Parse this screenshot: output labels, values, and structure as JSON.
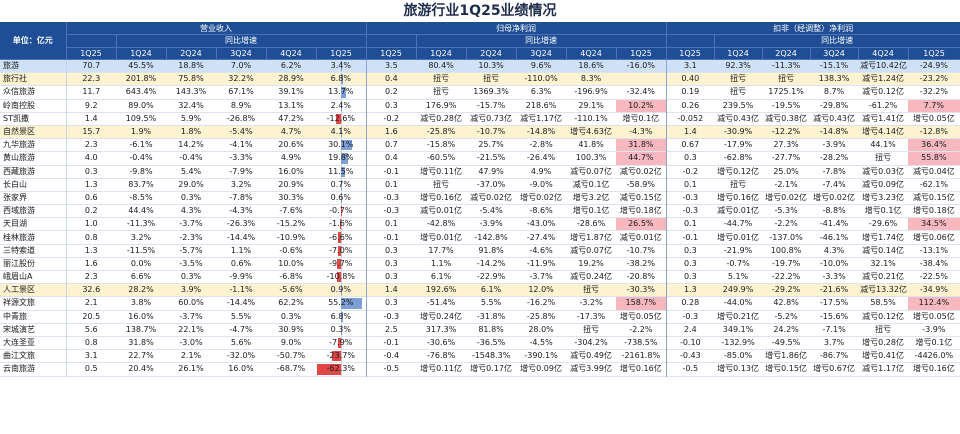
{
  "title": "旅游行业1Q25业绩情况",
  "header": {
    "unit_label": "单位：亿元",
    "groups": [
      "营业收入",
      "归母净利润",
      "扣非（经调整）净利润"
    ],
    "subgroup": "同比增速",
    "cols_revenue": [
      "1Q25",
      "1Q24",
      "2Q24",
      "3Q24",
      "4Q24",
      "1Q25"
    ],
    "cols_profit": [
      "1Q25",
      "1Q24",
      "2Q24",
      "3Q24",
      "4Q24",
      "1Q25"
    ],
    "cols_adj": [
      "1Q25",
      "1Q24",
      "2Q24",
      "3Q24",
      "4Q24",
      "1Q25"
    ]
  },
  "rows": [
    {
      "type": "total",
      "name": "旅游",
      "rev": [
        "70.7",
        "45.5%",
        "18.8%",
        "7.0%",
        "6.2%",
        "3.4%"
      ],
      "np": [
        "3.5",
        "80.4%",
        "10.3%",
        "9.6%",
        "18.6%",
        "-16.0%"
      ],
      "adj": [
        "3.1",
        "92.3%",
        "-11.3%",
        "-15.1%",
        "减亏10.42亿",
        "-24.9%"
      ],
      "bar": 3.4
    },
    {
      "type": "sector",
      "name": "旅行社",
      "rev": [
        "22.3",
        "201.8%",
        "75.8%",
        "32.2%",
        "28.9%",
        "6.8%"
      ],
      "np": [
        "0.4",
        "扭亏",
        "扭亏",
        "-110.0%",
        "8.3%",
        ""
      ],
      "adj": [
        "0.40",
        "扭亏",
        "扭亏",
        "138.3%",
        "减亏1.24亿",
        "-23.2%"
      ],
      "bar": 6.8
    },
    {
      "type": "row",
      "name": "众信旅游",
      "rev": [
        "11.7",
        "643.4%",
        "143.3%",
        "67.1%",
        "39.1%",
        "13.7%"
      ],
      "np": [
        "0.2",
        "扭亏",
        "1369.3%",
        "6.3%",
        "-196.9%",
        "-32.4%"
      ],
      "adj": [
        "0.19",
        "扭亏",
        "1725.1%",
        "8.7%",
        "减亏0.12亿",
        "-32.2%"
      ],
      "bar": 13.7
    },
    {
      "type": "row",
      "name": "岭南控股",
      "rev": [
        "9.2",
        "89.0%",
        "32.4%",
        "8.9%",
        "13.1%",
        "2.4%"
      ],
      "np": [
        "0.3",
        "176.9%",
        "-15.7%",
        "218.6%",
        "29.1%",
        "10.2%"
      ],
      "adj": [
        "0.26",
        "239.5%",
        "-19.5%",
        "-29.8%",
        "-61.2%",
        "7.7%"
      ],
      "bar": 2.4,
      "pink_np": true,
      "pink_adj": true
    },
    {
      "type": "row",
      "name": "ST凯撒",
      "rev": [
        "1.4",
        "109.5%",
        "5.9%",
        "-26.8%",
        "47.2%",
        "-12.6%"
      ],
      "np": [
        "-0.2",
        "减亏0.28亿",
        "减亏0.73亿",
        "减亏1.17亿",
        "-110.1%",
        "增亏0.1亿"
      ],
      "adj": [
        "-0.052",
        "减亏0.43亿",
        "减亏0.38亿",
        "减亏0.43亿",
        "减亏1.41亿",
        "增亏0.05亿"
      ],
      "bar": -12.6
    },
    {
      "type": "sector",
      "name": "自然景区",
      "rev": [
        "15.7",
        "1.9%",
        "1.8%",
        "-5.4%",
        "4.7%",
        "4.1%"
      ],
      "np": [
        "1.6",
        "-25.8%",
        "-10.7%",
        "-14.8%",
        "增亏4.63亿",
        "-4.3%"
      ],
      "adj": [
        "1.4",
        "-30.9%",
        "-12.2%",
        "-14.8%",
        "增亏4.14亿",
        "-12.8%"
      ],
      "bar": 4.1
    },
    {
      "type": "row",
      "name": "九华旅游",
      "rev": [
        "2.3",
        "-6.1%",
        "14.2%",
        "-4.1%",
        "20.6%",
        "30.1%"
      ],
      "np": [
        "0.7",
        "-15.8%",
        "25.7%",
        "-2.8%",
        "41.8%",
        "31.8%"
      ],
      "adj": [
        "0.67",
        "-17.9%",
        "27.3%",
        "-3.9%",
        "44.1%",
        "36.4%"
      ],
      "bar": 30.1,
      "pink_np": true,
      "pink_adj": true
    },
    {
      "type": "row",
      "name": "黄山旅游",
      "rev": [
        "4.0",
        "-0.4%",
        "-0.4%",
        "-3.3%",
        "4.9%",
        "19.8%"
      ],
      "np": [
        "0.4",
        "-60.5%",
        "-21.5%",
        "-26.4%",
        "100.3%",
        "44.7%"
      ],
      "adj": [
        "0.3",
        "-62.8%",
        "-27.7%",
        "-28.2%",
        "扭亏",
        "55.8%"
      ],
      "bar": 19.8,
      "pink_np": true,
      "pink_adj": true
    },
    {
      "type": "row",
      "name": "西藏旅游",
      "rev": [
        "0.3",
        "-9.8%",
        "5.4%",
        "-7.9%",
        "16.0%",
        "11.5%"
      ],
      "np": [
        "-0.1",
        "增亏0.11亿",
        "47.9%",
        "4.9%",
        "减亏0.07亿",
        "减亏0.02亿"
      ],
      "adj": [
        "-0.2",
        "增亏0.12亿",
        "25.0%",
        "-7.8%",
        "减亏0.03亿",
        "减亏0.04亿"
      ],
      "bar": 11.5
    },
    {
      "type": "row",
      "name": "长白山",
      "rev": [
        "1.3",
        "83.7%",
        "29.0%",
        "3.2%",
        "20.9%",
        "0.7%"
      ],
      "np": [
        "0.1",
        "扭亏",
        "-37.0%",
        "-9.0%",
        "减亏0.1亿",
        "-58.9%"
      ],
      "adj": [
        "0.1",
        "扭亏",
        "-2.1%",
        "-7.4%",
        "减亏0.09亿",
        "-62.1%"
      ],
      "bar": 0.7
    },
    {
      "type": "row",
      "name": "张家界",
      "rev": [
        "0.6",
        "-8.5%",
        "0.3%",
        "-7.8%",
        "30.3%",
        "0.6%"
      ],
      "np": [
        "-0.3",
        "增亏0.16亿",
        "减亏0.02亿",
        "增亏0.02亿",
        "增亏3.2亿",
        "减亏0.15亿"
      ],
      "adj": [
        "-0.3",
        "增亏0.16亿",
        "增亏0.02亿",
        "增亏0.02亿",
        "增亏3.23亿",
        "减亏0.15亿"
      ],
      "bar": 0.6
    },
    {
      "type": "row",
      "name": "西域旅游",
      "rev": [
        "0.2",
        "44.4%",
        "4.3%",
        "-4.3%",
        "-7.6%",
        "-0.7%"
      ],
      "np": [
        "-0.3",
        "减亏0.01亿",
        "-5.4%",
        "-8.6%",
        "增亏0.1亿",
        "增亏0.18亿"
      ],
      "adj": [
        "-0.3",
        "减亏0.01亿",
        "-5.3%",
        "-8.8%",
        "增亏0.1亿",
        "增亏0.18亿"
      ],
      "bar": -0.7
    },
    {
      "type": "row",
      "name": "天目湖",
      "rev": [
        "1.0",
        "-11.3%",
        "-3.7%",
        "-26.3%",
        "-15.2%",
        "-1.6%"
      ],
      "np": [
        "0.1",
        "-42.8%",
        "-3.9%",
        "-43.0%",
        "-28.6%",
        "26.5%"
      ],
      "adj": [
        "0.1",
        "-44.7%",
        "-2.2%",
        "-41.4%",
        "-29.6%",
        "34.5%"
      ],
      "bar": -1.6,
      "pink_np": true,
      "pink_adj": true
    },
    {
      "type": "row",
      "name": "桂林旅游",
      "rev": [
        "0.8",
        "3.2%",
        "-2.3%",
        "-14.4%",
        "-10.9%",
        "-6.6%"
      ],
      "np": [
        "-0.1",
        "增亏0.01亿",
        "-142.8%",
        "-27.4%",
        "增亏1.87亿",
        "减亏0.01亿"
      ],
      "adj": [
        "-0.1",
        "增亏0.01亿",
        "-137.0%",
        "-46.1%",
        "增亏1.74亿",
        "增亏0.06亿"
      ],
      "bar": -6.6
    },
    {
      "type": "row",
      "name": "三特索道",
      "rev": [
        "1.3",
        "-11.5%",
        "-5.7%",
        "1.1%",
        "-0.6%",
        "-7.0%"
      ],
      "np": [
        "0.3",
        "17.7%",
        "91.8%",
        "-4.6%",
        "减亏0.07亿",
        "-10.7%"
      ],
      "adj": [
        "0.3",
        "-21.9%",
        "100.8%",
        "4.3%",
        "减亏0.14亿",
        "-13.1%"
      ],
      "bar": -7.0
    },
    {
      "type": "row",
      "name": "丽江股份",
      "rev": [
        "1.6",
        "0.0%",
        "-3.5%",
        "0.6%",
        "10.0%",
        "-9.7%"
      ],
      "np": [
        "0.3",
        "1.1%",
        "-14.2%",
        "-11.9%",
        "19.2%",
        "-38.2%"
      ],
      "adj": [
        "0.3",
        "-0.7%",
        "-19.7%",
        "-10.0%",
        "32.1%",
        "-38.4%"
      ],
      "bar": -9.7
    },
    {
      "type": "row",
      "name": "峨眉山A",
      "rev": [
        "2.3",
        "6.6%",
        "0.3%",
        "-9.9%",
        "-6.8%",
        "-10.8%"
      ],
      "np": [
        "0.3",
        "6.1%",
        "-22.9%",
        "-3.7%",
        "减亏0.24亿",
        "-20.8%"
      ],
      "adj": [
        "0.3",
        "5.1%",
        "-22.2%",
        "-3.3%",
        "减亏0.21亿",
        "-22.5%"
      ],
      "bar": -10.8
    },
    {
      "type": "sector",
      "name": "人工景区",
      "rev": [
        "32.6",
        "28.2%",
        "3.9%",
        "-1.1%",
        "-5.6%",
        "0.9%"
      ],
      "np": [
        "1.4",
        "192.6%",
        "6.1%",
        "12.0%",
        "扭亏",
        "-30.3%"
      ],
      "adj": [
        "1.3",
        "249.9%",
        "-29.2%",
        "-21.6%",
        "减亏13.32亿",
        "-34.9%"
      ],
      "bar": 0.9
    },
    {
      "type": "row",
      "name": "祥源文旅",
      "rev": [
        "2.1",
        "3.8%",
        "60.0%",
        "-14.4%",
        "62.2%",
        "55.2%"
      ],
      "np": [
        "0.3",
        "-51.4%",
        "5.5%",
        "-16.2%",
        "-3.2%",
        "158.7%"
      ],
      "adj": [
        "0.28",
        "-44.0%",
        "42.8%",
        "-17.5%",
        "58.5%",
        "112.4%"
      ],
      "bar": 55.2,
      "pink_np": true,
      "pink_adj": true
    },
    {
      "type": "row",
      "name": "中青旅",
      "rev": [
        "20.5",
        "16.0%",
        "-3.7%",
        "5.5%",
        "0.3%",
        "6.8%"
      ],
      "np": [
        "-0.3",
        "增亏0.24亿",
        "-31.8%",
        "-25.8%",
        "-17.3%",
        "增亏0.05亿"
      ],
      "adj": [
        "-0.3",
        "增亏0.21亿",
        "-5.2%",
        "-15.6%",
        "减亏0.12亿",
        "增亏0.05亿"
      ],
      "bar": 6.8
    },
    {
      "type": "row",
      "name": "宋城演艺",
      "rev": [
        "5.6",
        "138.7%",
        "22.1%",
        "-4.7%",
        "30.9%",
        "0.3%"
      ],
      "np": [
        "2.5",
        "317.3%",
        "81.8%",
        "28.0%",
        "扭亏",
        "-2.2%"
      ],
      "adj": [
        "2.4",
        "349.1%",
        "24.2%",
        "-7.1%",
        "扭亏",
        "-3.9%"
      ],
      "bar": 0.3
    },
    {
      "type": "row",
      "name": "大连圣亚",
      "rev": [
        "0.8",
        "31.8%",
        "-3.0%",
        "5.6%",
        "9.0%",
        "-7.9%"
      ],
      "np": [
        "-0.1",
        "-30.6%",
        "-36.5%",
        "-4.5%",
        "-304.2%",
        "-738.5%"
      ],
      "adj": [
        "-0.10",
        "-132.9%",
        "-49.5%",
        "3.7%",
        "增亏0.28亿",
        "增亏0.1亿"
      ],
      "bar": -7.9
    },
    {
      "type": "row",
      "name": "曲江文旅",
      "rev": [
        "3.1",
        "22.7%",
        "2.1%",
        "-32.0%",
        "-50.7%",
        "-23.7%"
      ],
      "np": [
        "-0.4",
        "-76.8%",
        "-1548.3%",
        "-390.1%",
        "减亏0.49亿",
        "-2161.8%"
      ],
      "adj": [
        "-0.43",
        "-85.0%",
        "增亏1.86亿",
        "-86.7%",
        "增亏0.41亿",
        "-4426.0%"
      ],
      "bar": -23.7
    },
    {
      "type": "row",
      "name": "云南旅游",
      "rev": [
        "0.5",
        "20.4%",
        "26.1%",
        "16.0%",
        "-68.7%",
        "-62.3%"
      ],
      "np": [
        "-0.5",
        "增亏0.11亿",
        "增亏0.17亿",
        "增亏0.09亿",
        "减亏3.99亿",
        "增亏0.16亿"
      ],
      "adj": [
        "-0.5",
        "增亏0.13亿",
        "增亏0.15亿",
        "增亏0.67亿",
        "减亏1.17亿",
        "增亏0.16亿"
      ],
      "bar": -62.3
    }
  ]
}
